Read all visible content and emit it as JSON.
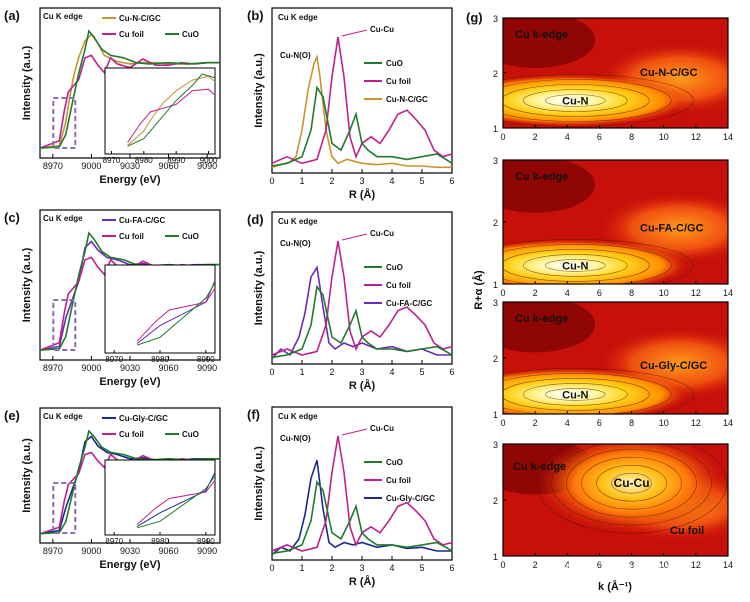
{
  "figure": {
    "watermark": "知乎 @喵理计算",
    "colors": {
      "cu_foil": "#c0208e",
      "cuo": "#1f7a2c",
      "cu_n_c": "#c8932e",
      "cu_fa_c": "#6a2bb5",
      "cu_gly_c": "#1a2a8c",
      "frame": "#000000",
      "inset_box": "#8a6fb0"
    }
  },
  "chart_data": [
    {
      "panel": "(a)",
      "type": "line",
      "annotation": "Cu K edge",
      "xlabel": "Energy (eV)",
      "ylabel": "Intensity (a.u.)",
      "xticks": [
        "8970",
        "9000",
        "9030",
        "9060",
        "9090"
      ],
      "xlim": [
        8960,
        9100
      ],
      "legend": [
        "Cu-N-C/GC",
        "Cu foil",
        "CuO"
      ],
      "series": [
        {
          "name": "Cu-N-C/GC",
          "color": "#c8932e",
          "x": [
            8960,
            8975,
            8980,
            8983,
            8986,
            8990,
            8995,
            9000,
            9005,
            9010,
            9020,
            9030,
            9040,
            9050,
            9060,
            9070,
            9080,
            9090,
            9100
          ],
          "y": [
            0.04,
            0.06,
            0.25,
            0.45,
            0.62,
            0.78,
            0.92,
            0.97,
            0.9,
            0.8,
            0.75,
            0.73,
            0.74,
            0.74,
            0.73,
            0.73,
            0.73,
            0.74,
            0.74
          ]
        },
        {
          "name": "Cu foil",
          "color": "#c0208e",
          "x": [
            8960,
            8975,
            8979,
            8982,
            8986,
            8990,
            8995,
            9000,
            9005,
            9010,
            9015,
            9020,
            9030,
            9040,
            9050,
            9060,
            9070,
            9080,
            9090,
            9100
          ],
          "y": [
            0.04,
            0.1,
            0.35,
            0.5,
            0.55,
            0.6,
            0.78,
            0.8,
            0.72,
            0.66,
            0.78,
            0.73,
            0.7,
            0.77,
            0.72,
            0.72,
            0.74,
            0.73,
            0.74,
            0.74
          ]
        },
        {
          "name": "CuO",
          "color": "#1f7a2c",
          "x": [
            8960,
            8975,
            8980,
            8985,
            8990,
            8995,
            8998,
            9002,
            9008,
            9015,
            9025,
            9035,
            9045,
            9060,
            9075,
            9090,
            9100
          ],
          "y": [
            0.04,
            0.05,
            0.15,
            0.4,
            0.65,
            0.85,
            1.0,
            0.95,
            0.85,
            0.8,
            0.78,
            0.74,
            0.73,
            0.74,
            0.73,
            0.74,
            0.74
          ]
        }
      ],
      "inset": {
        "xticks": [
          "8970",
          "8980",
          "8990",
          "9000"
        ],
        "xlim": [
          8968,
          9002
        ]
      }
    },
    {
      "panel": "(c)",
      "type": "line",
      "annotation": "Cu K edge",
      "xlabel": "Energy (eV)",
      "ylabel": "Intensity (a.u.)",
      "xticks": [
        "8970",
        "9000",
        "9030",
        "9060",
        "9090"
      ],
      "xlim": [
        8960,
        9100
      ],
      "legend": [
        "Cu-FA-C/GC",
        "Cu foil",
        "CuO"
      ],
      "series": [
        {
          "name": "Cu-FA-C/GC",
          "color": "#6a2bb5",
          "x": [
            8960,
            8975,
            8980,
            8985,
            8990,
            8995,
            9000,
            9005,
            9012,
            9020,
            9030,
            9040,
            9050,
            9060,
            9070,
            9080,
            9090,
            9100
          ],
          "y": [
            0.04,
            0.07,
            0.3,
            0.45,
            0.6,
            0.88,
            0.93,
            0.86,
            0.8,
            0.78,
            0.74,
            0.75,
            0.73,
            0.74,
            0.73,
            0.74,
            0.74,
            0.74
          ]
        },
        {
          "name": "Cu foil",
          "color": "#c0208e",
          "x": [
            8960,
            8975,
            8979,
            8982,
            8986,
            8990,
            8995,
            9000,
            9005,
            9010,
            9015,
            9020,
            9030,
            9040,
            9050,
            9060,
            9070,
            9080,
            9090,
            9100
          ],
          "y": [
            0.04,
            0.1,
            0.35,
            0.5,
            0.55,
            0.6,
            0.78,
            0.8,
            0.72,
            0.66,
            0.78,
            0.73,
            0.7,
            0.77,
            0.72,
            0.72,
            0.74,
            0.73,
            0.74,
            0.74
          ]
        },
        {
          "name": "CuO",
          "color": "#1f7a2c",
          "x": [
            8960,
            8975,
            8980,
            8985,
            8990,
            8995,
            8998,
            9002,
            9008,
            9015,
            9025,
            9035,
            9045,
            9060,
            9075,
            9090,
            9100
          ],
          "y": [
            0.04,
            0.05,
            0.15,
            0.4,
            0.65,
            0.85,
            1.0,
            0.95,
            0.85,
            0.8,
            0.78,
            0.74,
            0.73,
            0.74,
            0.73,
            0.74,
            0.74
          ]
        }
      ],
      "inset": {
        "xticks": [
          "8970",
          "8980",
          "8990"
        ],
        "xlim": [
          8968,
          8992
        ]
      }
    },
    {
      "panel": "(e)",
      "type": "line",
      "annotation": "Cu K edge",
      "xlabel": "Energy (eV)",
      "ylabel": "Intensity (a.u.)",
      "xticks": [
        "8970",
        "9000",
        "9030",
        "9060",
        "9090"
      ],
      "xlim": [
        8960,
        9100
      ],
      "legend": [
        "Cu-Gly-C/GC",
        "Cu foil",
        "CuO"
      ],
      "series": [
        {
          "name": "Cu-Gly-C/GC",
          "color": "#1a2a8c",
          "x": [
            8960,
            8975,
            8980,
            8985,
            8990,
            8995,
            9000,
            9005,
            9012,
            9020,
            9030,
            9040,
            9050,
            9060,
            9070,
            9080,
            9090,
            9100
          ],
          "y": [
            0.04,
            0.07,
            0.28,
            0.45,
            0.62,
            0.9,
            0.95,
            0.86,
            0.8,
            0.78,
            0.74,
            0.75,
            0.73,
            0.74,
            0.73,
            0.74,
            0.74,
            0.74
          ]
        },
        {
          "name": "Cu foil",
          "color": "#c0208e",
          "x": [
            8960,
            8975,
            8979,
            8982,
            8986,
            8990,
            8995,
            9000,
            9005,
            9010,
            9015,
            9020,
            9030,
            9040,
            9050,
            9060,
            9070,
            9080,
            9090,
            9100
          ],
          "y": [
            0.04,
            0.1,
            0.35,
            0.5,
            0.55,
            0.6,
            0.78,
            0.8,
            0.72,
            0.66,
            0.78,
            0.73,
            0.7,
            0.77,
            0.72,
            0.72,
            0.74,
            0.73,
            0.74,
            0.74
          ]
        },
        {
          "name": "CuO",
          "color": "#1f7a2c",
          "x": [
            8960,
            8975,
            8980,
            8985,
            8990,
            8995,
            8998,
            9002,
            9008,
            9015,
            9025,
            9035,
            9045,
            9060,
            9075,
            9090,
            9100
          ],
          "y": [
            0.04,
            0.05,
            0.15,
            0.4,
            0.65,
            0.85,
            1.0,
            0.95,
            0.85,
            0.8,
            0.78,
            0.74,
            0.73,
            0.74,
            0.73,
            0.74,
            0.74
          ]
        }
      ],
      "inset": {
        "xticks": [
          "8970",
          "8980",
          "8990"
        ],
        "xlim": [
          8968,
          8992
        ]
      }
    },
    {
      "panel": "(b)",
      "type": "line",
      "annotation": "Cu K edge",
      "xlabel": "R (Å)",
      "ylabel": "Intensity (a.u.)",
      "xticks": [
        "0",
        "1",
        "2",
        "3",
        "4",
        "5",
        "6"
      ],
      "xlim": [
        0,
        6
      ],
      "legend": [
        "CuO",
        "Cu foil",
        "Cu-N-C/GC"
      ],
      "peak_labels": [
        "Cu-N(O)",
        "Cu-Cu"
      ],
      "series": [
        {
          "name": "Cu-N-C/GC",
          "color": "#c8932e",
          "x": [
            0,
            0.3,
            0.6,
            0.8,
            1.0,
            1.2,
            1.4,
            1.5,
            1.6,
            1.8,
            2.0,
            2.2,
            2.5,
            3.0,
            3.5,
            4.0,
            4.5,
            5.0,
            5.5,
            6.0
          ],
          "y": [
            0.02,
            0.04,
            0.06,
            0.1,
            0.3,
            0.6,
            0.8,
            0.85,
            0.7,
            0.3,
            0.1,
            0.05,
            0.08,
            0.05,
            0.04,
            0.05,
            0.03,
            0.03,
            0.02,
            0.02
          ]
        },
        {
          "name": "Cu foil",
          "color": "#c0208e",
          "x": [
            0,
            0.5,
            1.0,
            1.5,
            1.8,
            2.0,
            2.2,
            2.4,
            2.6,
            2.8,
            3.0,
            3.3,
            3.6,
            3.9,
            4.2,
            4.5,
            4.8,
            5.1,
            5.4,
            5.7,
            6.0
          ],
          "y": [
            0.05,
            0.1,
            0.05,
            0.08,
            0.3,
            0.7,
            1.0,
            0.7,
            0.25,
            0.1,
            0.2,
            0.25,
            0.2,
            0.3,
            0.42,
            0.45,
            0.38,
            0.3,
            0.15,
            0.1,
            0.12
          ]
        },
        {
          "name": "CuO",
          "color": "#1f7a2c",
          "x": [
            0,
            0.5,
            1.0,
            1.3,
            1.5,
            1.7,
            2.0,
            2.3,
            2.6,
            2.8,
            3.0,
            3.2,
            3.5,
            4.0,
            4.5,
            5.0,
            5.5,
            5.8,
            6.0
          ],
          "y": [
            0.03,
            0.05,
            0.1,
            0.3,
            0.62,
            0.55,
            0.2,
            0.15,
            0.3,
            0.42,
            0.2,
            0.15,
            0.1,
            0.1,
            0.08,
            0.1,
            0.12,
            0.08,
            0.05
          ]
        }
      ]
    },
    {
      "panel": "(d)",
      "type": "line",
      "annotation": "Cu K edge",
      "xlabel": "R (Å)",
      "ylabel": "Intensity (a.u.)",
      "xticks": [
        "0",
        "1",
        "2",
        "3",
        "4",
        "5",
        "6"
      ],
      "xlim": [
        0,
        6
      ],
      "legend": [
        "CuO",
        "Cu foil",
        "Cu-FA-C/GC"
      ],
      "peak_labels": [
        "Cu-N(O)",
        "Cu-Cu"
      ],
      "series": [
        {
          "name": "Cu-FA-C/GC",
          "color": "#6a2bb5",
          "x": [
            0,
            0.3,
            0.6,
            0.9,
            1.1,
            1.3,
            1.5,
            1.7,
            1.9,
            2.1,
            2.4,
            2.7,
            3.0,
            3.5,
            4.0,
            4.5,
            5.0,
            5.5,
            6.0
          ],
          "y": [
            0.02,
            0.1,
            0.05,
            0.2,
            0.4,
            0.7,
            0.78,
            0.45,
            0.15,
            0.1,
            0.15,
            0.12,
            0.15,
            0.1,
            0.12,
            0.08,
            0.1,
            0.05,
            0.05
          ]
        },
        {
          "name": "Cu foil",
          "color": "#c0208e",
          "x": [
            0,
            0.5,
            1.0,
            1.5,
            1.8,
            2.0,
            2.2,
            2.4,
            2.6,
            2.8,
            3.0,
            3.3,
            3.6,
            3.9,
            4.2,
            4.5,
            4.8,
            5.1,
            5.4,
            5.7,
            6.0
          ],
          "y": [
            0.05,
            0.1,
            0.05,
            0.08,
            0.3,
            0.7,
            1.0,
            0.7,
            0.25,
            0.1,
            0.2,
            0.25,
            0.2,
            0.3,
            0.42,
            0.45,
            0.38,
            0.3,
            0.15,
            0.1,
            0.12
          ]
        },
        {
          "name": "CuO",
          "color": "#1f7a2c",
          "x": [
            0,
            0.5,
            1.0,
            1.3,
            1.5,
            1.7,
            2.0,
            2.3,
            2.6,
            2.8,
            3.0,
            3.2,
            3.5,
            4.0,
            4.5,
            5.0,
            5.5,
            5.8,
            6.0
          ],
          "y": [
            0.03,
            0.05,
            0.1,
            0.3,
            0.62,
            0.55,
            0.2,
            0.15,
            0.3,
            0.42,
            0.2,
            0.15,
            0.1,
            0.1,
            0.08,
            0.1,
            0.12,
            0.08,
            0.05
          ]
        }
      ]
    },
    {
      "panel": "(f)",
      "type": "line",
      "annotation": "Cu K edge",
      "xlabel": "R (Å)",
      "ylabel": "Intensity (a.u.)",
      "xticks": [
        "0",
        "1",
        "2",
        "3",
        "4",
        "5",
        "6"
      ],
      "xlim": [
        0,
        6
      ],
      "legend": [
        "CuO",
        "Cu foil",
        "Cu-Gly-C/GC"
      ],
      "peak_labels": [
        "Cu-N(O)",
        "Cu-Cu"
      ],
      "series": [
        {
          "name": "Cu-Gly-C/GC",
          "color": "#1a2a8c",
          "x": [
            0,
            0.3,
            0.6,
            0.9,
            1.1,
            1.3,
            1.5,
            1.7,
            1.9,
            2.1,
            2.4,
            2.7,
            3.0,
            3.5,
            4.0,
            4.5,
            5.0,
            5.5,
            6.0
          ],
          "y": [
            0.02,
            0.08,
            0.05,
            0.15,
            0.35,
            0.65,
            0.8,
            0.4,
            0.12,
            0.08,
            0.12,
            0.1,
            0.12,
            0.08,
            0.1,
            0.07,
            0.08,
            0.05,
            0.05
          ]
        },
        {
          "name": "Cu foil",
          "color": "#c0208e",
          "x": [
            0,
            0.5,
            1.0,
            1.5,
            1.8,
            2.0,
            2.2,
            2.4,
            2.6,
            2.8,
            3.0,
            3.3,
            3.6,
            3.9,
            4.2,
            4.5,
            4.8,
            5.1,
            5.4,
            5.7,
            6.0
          ],
          "y": [
            0.05,
            0.1,
            0.05,
            0.08,
            0.3,
            0.7,
            1.0,
            0.7,
            0.25,
            0.1,
            0.2,
            0.25,
            0.2,
            0.3,
            0.42,
            0.45,
            0.38,
            0.3,
            0.15,
            0.1,
            0.12
          ]
        },
        {
          "name": "CuO",
          "color": "#1f7a2c",
          "x": [
            0,
            0.5,
            1.0,
            1.3,
            1.5,
            1.7,
            2.0,
            2.3,
            2.6,
            2.8,
            3.0,
            3.2,
            3.5,
            4.0,
            4.5,
            5.0,
            5.5,
            5.8,
            6.0
          ],
          "y": [
            0.03,
            0.05,
            0.1,
            0.3,
            0.62,
            0.55,
            0.2,
            0.15,
            0.3,
            0.42,
            0.2,
            0.15,
            0.1,
            0.1,
            0.08,
            0.1,
            0.12,
            0.08,
            0.05
          ]
        }
      ]
    },
    {
      "panel": "(g)",
      "type": "heatmap",
      "xlabel": "k (Å⁻¹)",
      "ylabel": "R+α (Å)",
      "xticks": [
        "0",
        "2",
        "4",
        "6",
        "8",
        "10",
        "12",
        "14"
      ],
      "xlim": [
        0,
        14
      ],
      "yticks": [
        "1",
        "2",
        "3"
      ],
      "ylim": [
        1,
        3
      ],
      "subplots": [
        {
          "labels": [
            "Cu k-edge",
            "Cu-N-C/GC",
            "Cu-N"
          ],
          "peak": {
            "k": 4,
            "R": 1.5
          }
        },
        {
          "labels": [
            "Cu k-edge",
            "Cu-FA-C/GC",
            "Cu-N"
          ],
          "peak": {
            "k": 4,
            "R": 1.3
          }
        },
        {
          "labels": [
            "Cu k-edge",
            "Cu-Gly-C/GC",
            "Cu-N"
          ],
          "peak": {
            "k": 4,
            "R": 1.35
          }
        },
        {
          "labels": [
            "Cu k-edge",
            "Cu foil",
            "Cu-Cu"
          ],
          "peak": {
            "k": 8,
            "R": 2.3
          }
        }
      ]
    }
  ]
}
